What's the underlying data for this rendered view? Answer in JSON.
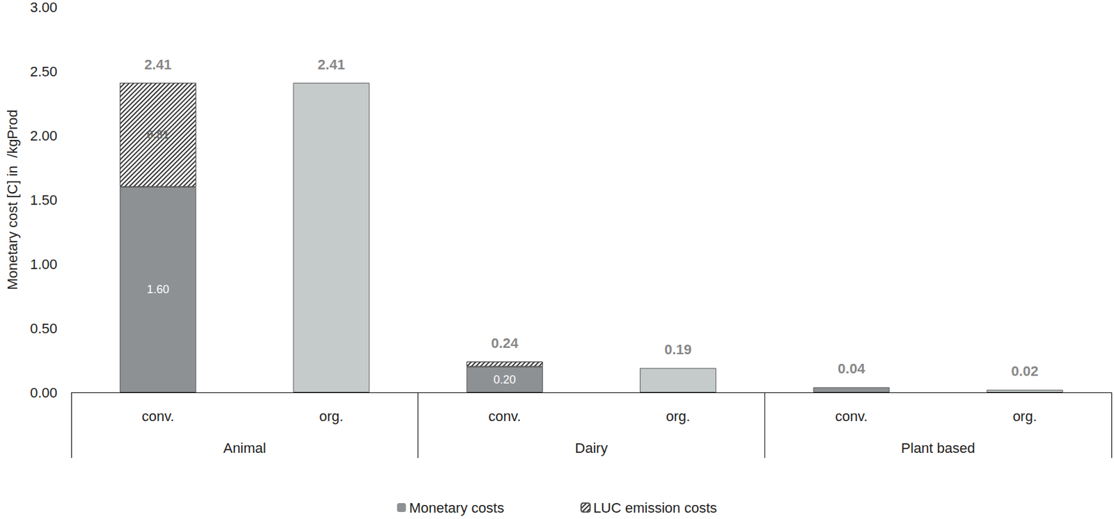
{
  "chart_data": {
    "type": "bar",
    "stacked": true,
    "data_labels": true,
    "legend": "bottom",
    "grid": false,
    "y_label": "Monetary cost [C] in  /kgProd",
    "categories": [
      "conv.",
      "org.",
      "conv.",
      "org.",
      "conv.",
      "org."
    ],
    "groups": [
      "Animal",
      "Animal",
      "Dairy",
      "Dairy",
      "Plant based",
      "Plant based"
    ],
    "series": [
      {
        "name": "Monetary costs",
        "color": "#8e9194",
        "colors": [
          "#8e9194",
          "#c5cbcb",
          "#8e9194",
          "#c5cbcb",
          "#8e9194",
          "#c5cbcb"
        ],
        "values": [
          1.6,
          2.41,
          0.2,
          0.19,
          0.04,
          0.02
        ],
        "value_labels": [
          "1.60",
          null,
          "0.20",
          null,
          null,
          null
        ]
      },
      {
        "name": "LUC emission costs",
        "color": "#333333",
        "values": [
          0.81,
          null,
          0.04,
          null,
          null,
          null
        ],
        "value_labels": [
          "0.81",
          null,
          null,
          null,
          null,
          null
        ]
      }
    ],
    "totals": [
      2.41,
      2.41,
      0.24,
      0.19,
      0.04,
      0.02
    ],
    "total_labels": [
      "2.41",
      "2.41",
      "0.24",
      "0.19",
      "0.04",
      "0.02"
    ],
    "ylim": [
      0,
      3
    ],
    "yticks": [
      {
        "value": 0,
        "label": "0.00"
      },
      {
        "value": 0.5,
        "label": "0.50"
      },
      {
        "value": 1,
        "label": "1.00"
      },
      {
        "value": 1.5,
        "label": "1.50"
      },
      {
        "value": 2,
        "label": "2.00"
      },
      {
        "value": 2.5,
        "label": "2.50"
      },
      {
        "value": 3,
        "label": "3.00"
      }
    ]
  }
}
